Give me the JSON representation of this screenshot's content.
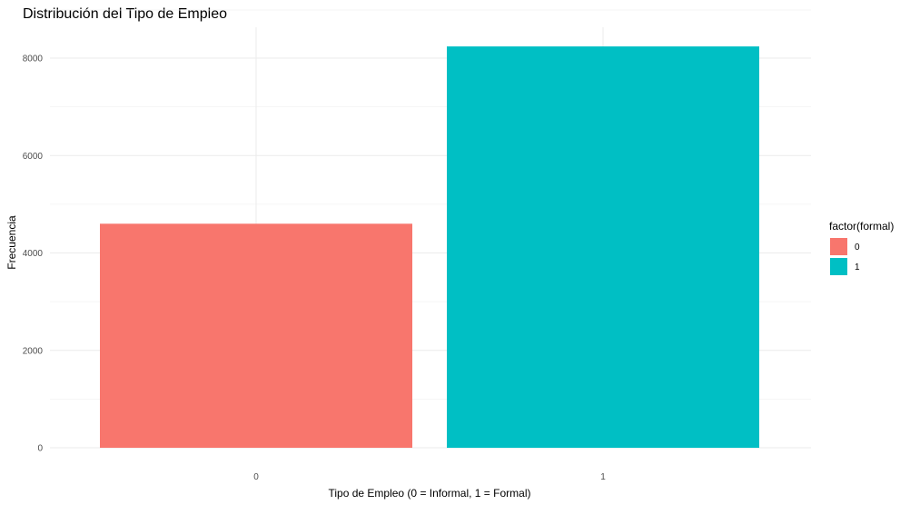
{
  "chart_data": {
    "type": "bar",
    "title": "Distribución del Tipo de Empleo",
    "xlabel": "Tipo de Empleo (0 = Informal, 1 = Formal)",
    "ylabel": "Frecuencia",
    "categories": [
      "0",
      "1"
    ],
    "values": [
      4600,
      8240
    ],
    "colors": [
      "#F8766D",
      "#00BFC4"
    ],
    "ylim": [
      0,
      8600
    ],
    "yticks": [
      0,
      2000,
      4000,
      6000,
      8000
    ],
    "ytick_labels": [
      "0",
      "2000",
      "4000",
      "6000",
      "8000"
    ],
    "grid": true,
    "legend": {
      "title": "factor(formal)",
      "position": "right",
      "entries": [
        {
          "label": "0",
          "color": "#F8766D"
        },
        {
          "label": "1",
          "color": "#00BFC4"
        }
      ]
    }
  }
}
